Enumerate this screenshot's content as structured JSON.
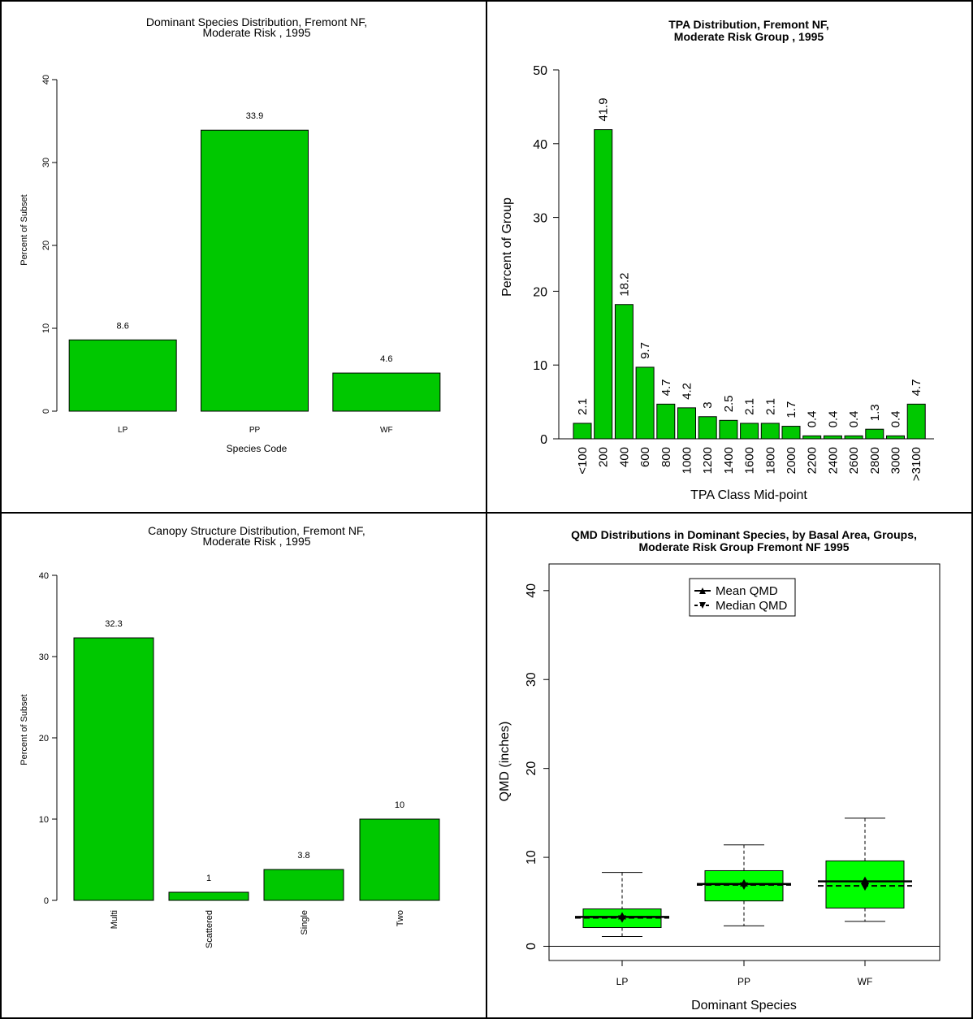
{
  "chart_data": [
    {
      "type": "bar",
      "title": "Dominant Species Distribution, Fremont NF,",
      "subtitle": "Moderate Risk , 1995",
      "xlabel": "Species Code",
      "ylabel": "Percent of Subset",
      "categories": [
        "LP",
        "PP",
        "WF"
      ],
      "values": [
        8.6,
        33.9,
        4.6
      ],
      "data_labels": [
        "8.6",
        "33.9",
        "4.6"
      ],
      "yticks": [
        "0",
        "10",
        "20",
        "30",
        "40"
      ],
      "ylim": [
        0,
        40
      ],
      "bar_color": "#00c800"
    },
    {
      "type": "bar",
      "title": "TPA Distribution, Fremont NF,",
      "subtitle": "Moderate Risk Group , 1995",
      "xlabel": "TPA Class Mid-point",
      "ylabel": "Percent of Group",
      "categories": [
        "<100",
        "200",
        "400",
        "600",
        "800",
        "1000",
        "1200",
        "1400",
        "1600",
        "1800",
        "2000",
        "2200",
        "2400",
        "2600",
        "2800",
        "3000",
        ">3100"
      ],
      "values": [
        2.1,
        41.9,
        18.2,
        9.7,
        4.7,
        4.2,
        3,
        2.5,
        2.1,
        2.1,
        1.7,
        0.4,
        0.4,
        0.4,
        1.3,
        0.4,
        4.7
      ],
      "data_labels": [
        "2.1",
        "41.9",
        "18.2",
        "9.7",
        "4.7",
        "4.2",
        "3",
        "2.5",
        "2.1",
        "2.1",
        "1.7",
        "0.4",
        "0.4",
        "0.4",
        "1.3",
        "0.4",
        "4.7"
      ],
      "yticks": [
        "0",
        "10",
        "20",
        "30",
        "40",
        "50"
      ],
      "ylim": [
        0,
        50
      ],
      "bar_color": "#00c800"
    },
    {
      "type": "bar",
      "title": "Canopy Structure Distribution, Fremont NF,",
      "subtitle": "Moderate Risk , 1995",
      "xlabel": "",
      "ylabel": "Percent of Subset",
      "categories": [
        "Multi",
        "Scattered",
        "Single",
        "Two"
      ],
      "values": [
        32.3,
        1,
        3.8,
        10
      ],
      "data_labels": [
        "32.3",
        "1",
        "3.8",
        "10"
      ],
      "yticks": [
        "0",
        "10",
        "20",
        "30",
        "40"
      ],
      "ylim": [
        0,
        40
      ],
      "bar_color": "#00c800"
    },
    {
      "type": "box",
      "title": "QMD Distributions in Dominant Species, by Basal Area, Groups,",
      "subtitle": "Moderate Risk Group Fremont NF 1995",
      "xlabel": "Dominant Species",
      "ylabel": "QMD (inches)",
      "categories": [
        "LP",
        "PP",
        "WF"
      ],
      "yticks": [
        "0",
        "10",
        "20",
        "30",
        "40"
      ],
      "ylim": [
        -1.6,
        43
      ],
      "legend": {
        "position": "top-center",
        "items": [
          "Mean QMD",
          "Median QMD"
        ]
      },
      "boxes": [
        {
          "min": 1.1,
          "q1": 2.1,
          "median": 3.2,
          "q3": 4.2,
          "max": 8.3,
          "mean": 3.3
        },
        {
          "min": 2.3,
          "q1": 5.1,
          "median": 6.9,
          "q3": 8.5,
          "max": 11.4,
          "mean": 7.0
        },
        {
          "min": 2.8,
          "q1": 4.3,
          "median": 6.8,
          "q3": 9.6,
          "max": 14.4,
          "mean": 7.3
        }
      ],
      "box_color": "#00ff00"
    }
  ]
}
